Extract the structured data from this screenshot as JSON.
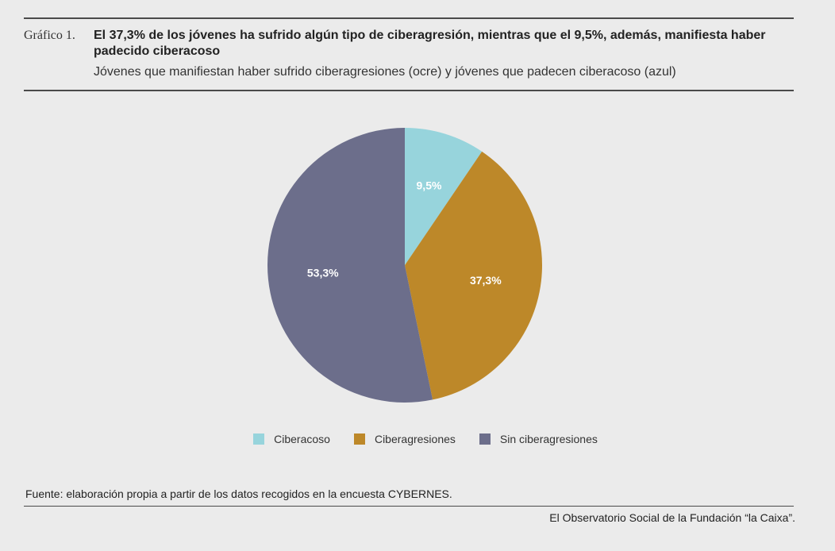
{
  "header": {
    "chart_label": "Gráfico 1.",
    "title": "El 37,3% de los jóvenes ha sufrido algún tipo de ciberagresión, mientras que el 9,5%, además, manifiesta haber padecido ciberacoso",
    "subtitle": "Jóvenes que manifiestan haber sufrido ciberagresiones (ocre) y jóvenes que padecen ciberacoso (azul)"
  },
  "chart_data": {
    "type": "pie",
    "title": "El 37,3% de los jóvenes ha sufrido algún tipo de ciberagresión, mientras que el 9,5%, además, manifiesta haber padecido ciberacoso",
    "subtitle": "Jóvenes que manifiestan haber sufrido ciberagresiones (ocre) y jóvenes que padecen ciberacoso (azul)",
    "categories": [
      "Ciberacoso",
      "Ciberagresiones",
      "Sin ciberagresiones"
    ],
    "values": [
      9.5,
      37.3,
      53.3
    ],
    "labels": [
      "9,5%",
      "37,3%",
      "53,3%"
    ],
    "colors": [
      "#97d4dc",
      "#bd8829",
      "#6c6e8b"
    ],
    "legend_position": "bottom"
  },
  "footer": {
    "source": "Fuente: elaboración propia a partir de los datos recogidos en la encuesta CYBERNES.",
    "credit": "El Observatorio Social de la Fundación “la Caixa”."
  }
}
